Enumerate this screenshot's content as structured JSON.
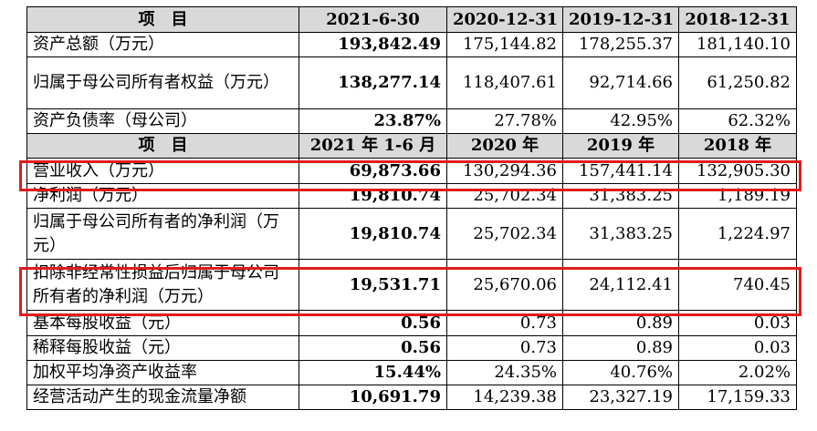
{
  "table": {
    "header1": [
      "项　目",
      "2021-6-30",
      "2020-12-31",
      "2019-12-31",
      "2018-12-31"
    ],
    "rows1": [
      {
        "label": "资产总额（万元）",
        "v": [
          "193,842.49",
          "175,144.82",
          "178,255.37",
          "181,140.10"
        ]
      },
      {
        "label": "归属于母公司所有者权益（万元）",
        "v": [
          "138,277.14",
          "118,407.61",
          "92,714.66",
          "61,250.82"
        ]
      },
      {
        "label": "资产负债率（母公司）",
        "v": [
          "23.87%",
          "27.78%",
          "42.95%",
          "62.32%"
        ]
      }
    ],
    "header2": [
      "项　目",
      "2021 年 1-6 月",
      "2020 年",
      "2019 年",
      "2018 年"
    ],
    "rows2": [
      {
        "label": "营业收入（万元）",
        "v": [
          "69,873.66",
          "130,294.36",
          "157,441.14",
          "132,905.30"
        ]
      },
      {
        "label": "净利润（万元）",
        "v": [
          "19,810.74",
          "25,702.34",
          "31,383.25",
          "1,189.19"
        ]
      },
      {
        "label": "归属于母公司所有者的净利润（万元）",
        "v": [
          "19,810.74",
          "25,702.34",
          "31,383.25",
          "1,224.97"
        ]
      },
      {
        "label": "扣除非经常性损益后归属于母公司所有者的净利润（万元）",
        "v": [
          "19,531.71",
          "25,670.06",
          "24,112.41",
          "740.45"
        ]
      },
      {
        "label": "基本每股收益（元）",
        "v": [
          "0.56",
          "0.73",
          "0.89",
          "0.03"
        ]
      },
      {
        "label": "稀释每股收益（元）",
        "v": [
          "0.56",
          "0.73",
          "0.89",
          "0.03"
        ]
      },
      {
        "label": "加权平均净资产收益率",
        "v": [
          "15.44%",
          "24.35%",
          "40.76%",
          "2.02%"
        ]
      },
      {
        "label": "经营活动产生的现金流量净额",
        "v": [
          "10,691.79",
          "14,239.38",
          "23,327.19",
          "17,159.33"
        ]
      }
    ]
  },
  "highlight_color": "#e21b1b"
}
